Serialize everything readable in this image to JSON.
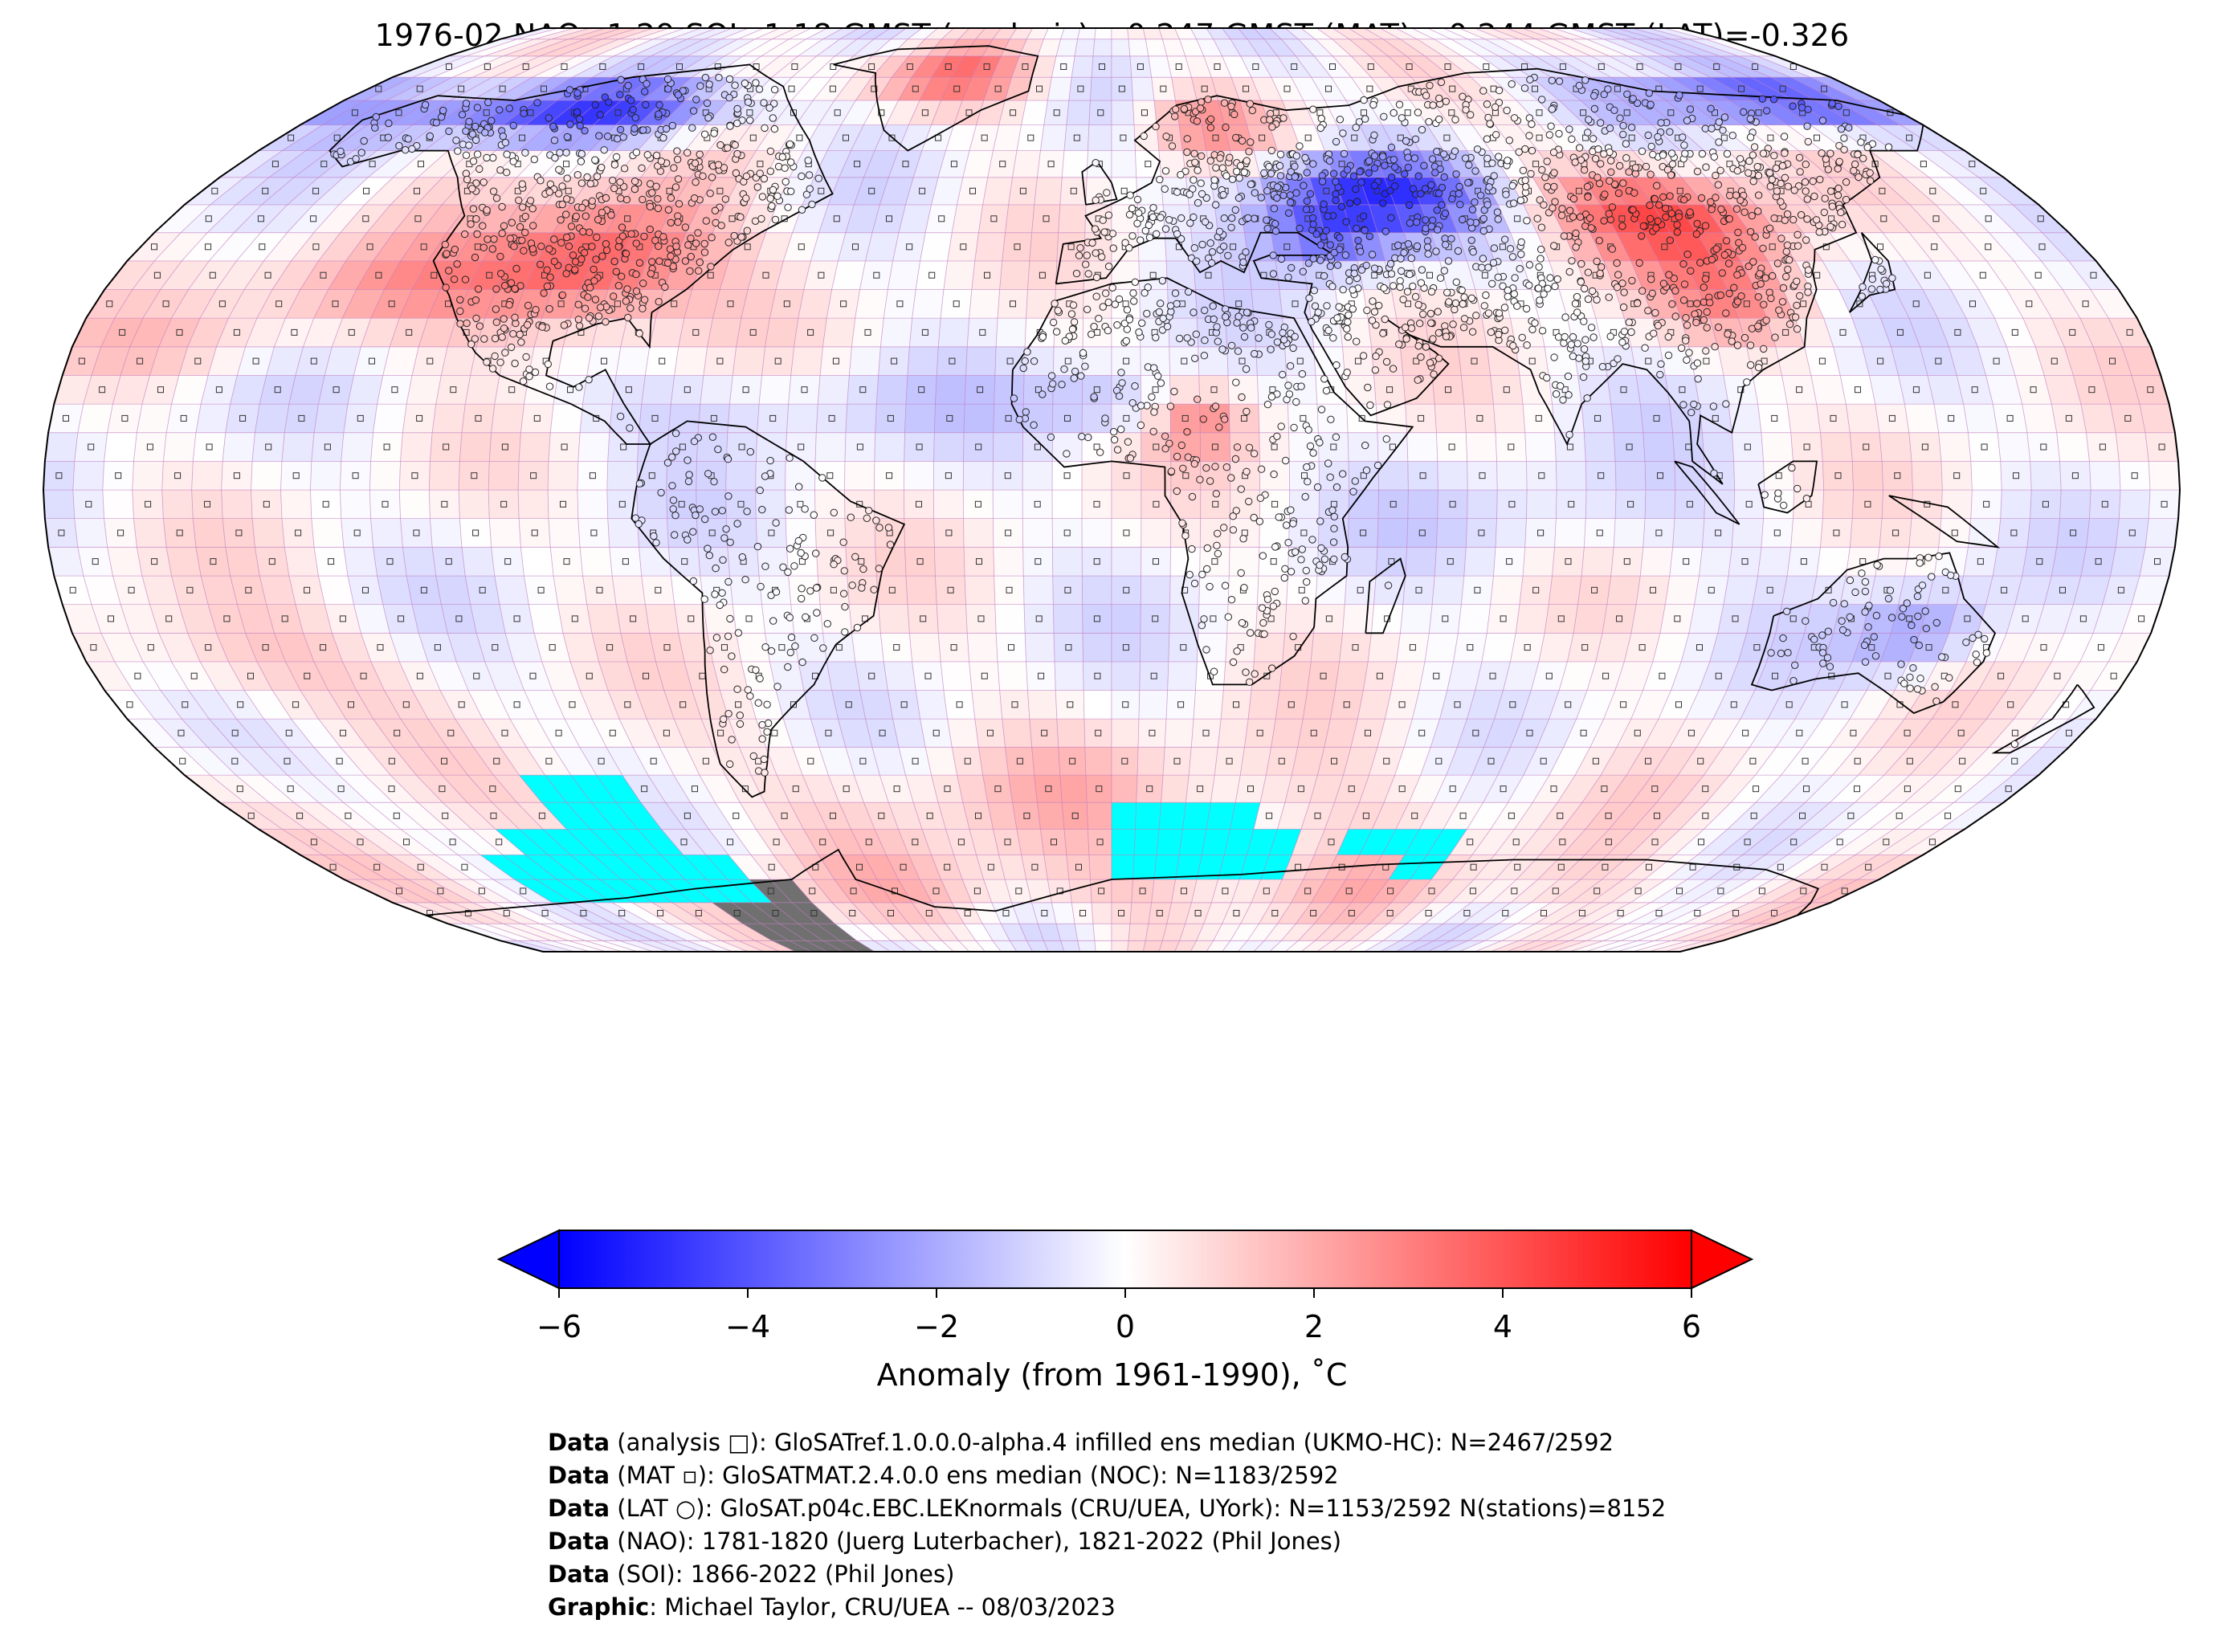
{
  "title": "1976-02 NAO=1.29 SOI=1.18 GMST (analysis)=-0.247 GMST (MAT)=-0.244 GMST (LAT)=-0.326",
  "colorbar": {
    "label": "Anomaly (from 1961-1990), ˚C",
    "ticks": [
      "−6",
      "−4",
      "−2",
      "0",
      "2",
      "4",
      "6"
    ],
    "tick_values": [
      -6,
      -4,
      -2,
      0,
      2,
      4,
      6
    ],
    "colors": {
      "min": "#0000ff",
      "mid": "#ffffff",
      "max": "#ff0000"
    },
    "extend": "both"
  },
  "map": {
    "projection": "Robinson",
    "grid_line_color": "#c07cc0",
    "missing_color": "#00ffff",
    "no_data_color": "#707070",
    "markers": {
      "analysis": "square",
      "MAT": "small square",
      "LAT": "circle"
    }
  },
  "credits": [
    {
      "bold": "Data",
      "text": " (analysis □): GloSATref.1.0.0.0-alpha.4 infilled ens median (UKMO-HC): N=2467/2592"
    },
    {
      "bold": "Data",
      "text": " (MAT ▫): GloSATMAT.2.4.0.0 ens median (NOC): N=1183/2592"
    },
    {
      "bold": "Data",
      "text": " (LAT ○): GloSAT.p04c.EBC.LEKnormals (CRU/UEA, UYork): N=1153/2592 N(stations)=8152"
    },
    {
      "bold": "Data",
      "text": " (NAO): 1781-1820 (Juerg Luterbacher), 1821-2022 (Phil Jones)"
    },
    {
      "bold": "Data",
      "text": " (SOI): 1866-2022 (Phil Jones)"
    },
    {
      "bold": "Graphic",
      "text": ": Michael Taylor, CRU/UEA -- 08/03/2023"
    }
  ]
}
